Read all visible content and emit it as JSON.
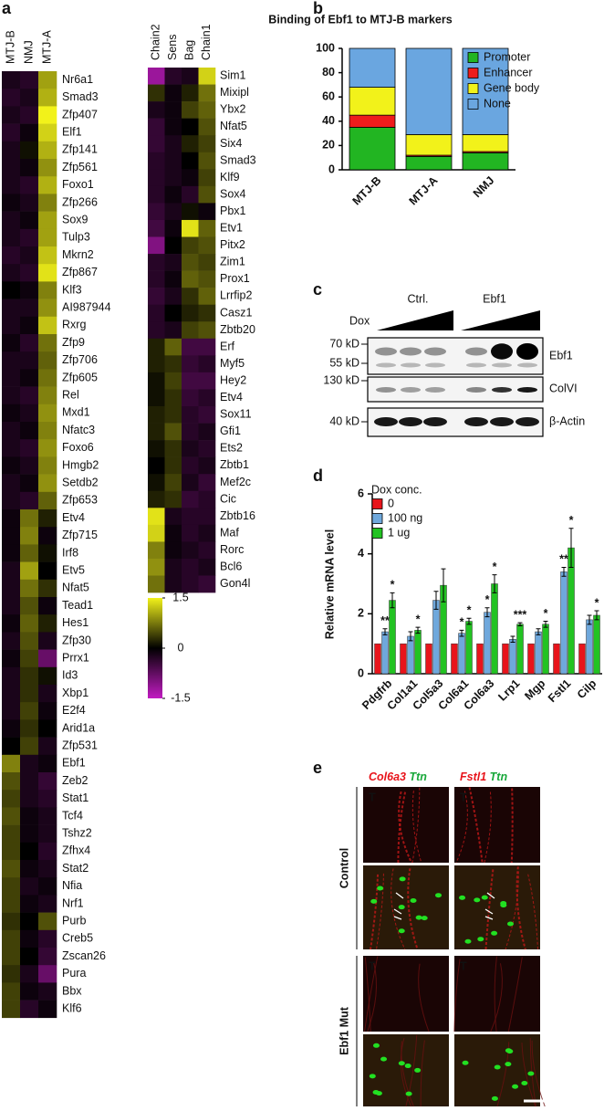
{
  "panel_labels": [
    "a",
    "b",
    "c",
    "d",
    "e"
  ],
  "chart_data": [
    {
      "type": "heatmap",
      "columns": [
        "MTJ-B",
        "NMJ",
        "MTJ-A"
      ],
      "rows": [
        "Nr6a1",
        "Smad3",
        "Zfp407",
        "Elf1",
        "Zfp141",
        "Zfp561",
        "Foxo1",
        "Zfp266",
        "Sox9",
        "Tulp3",
        "Mkrn2",
        "Zfp867",
        "Klf3",
        "AI987944",
        "Rxrg",
        "Zfp9",
        "Zfp706",
        "Zfp605",
        "Rel",
        "Mxd1",
        "Nfatc3",
        "Foxo6",
        "Hmgb2",
        "Setdb2",
        "Zfp653",
        "Etv4",
        "Zfp715",
        "Irf8",
        "Etv5",
        "Nfat5",
        "Tead1",
        "Hes1",
        "Zfp30",
        "Prrx1",
        "Id3",
        "Xbp1",
        "E2f4",
        "Arid1a",
        "Zfp531",
        "Ebf1",
        "Zeb2",
        "Stat1",
        "Tcf4",
        "Tshz2",
        "Zfhx4",
        "Stat2",
        "Nfia",
        "Nrf1",
        "Purb",
        "Creb5",
        "Zscan26",
        "Pura",
        "Bbx",
        "Klf6"
      ],
      "values": [
        [
          -0.2,
          -0.3,
          1.0
        ],
        [
          -0.3,
          -0.2,
          1.1
        ],
        [
          -0.2,
          -0.3,
          1.5
        ],
        [
          -0.3,
          -0.1,
          1.3
        ],
        [
          -0.2,
          0.1,
          1.1
        ],
        [
          -0.2,
          -0.1,
          0.9
        ],
        [
          -0.2,
          -0.3,
          1.1
        ],
        [
          -0.1,
          -0.2,
          0.8
        ],
        [
          -0.2,
          -0.1,
          1.0
        ],
        [
          -0.2,
          -0.3,
          1.0
        ],
        [
          -0.3,
          -0.2,
          1.2
        ],
        [
          -0.2,
          -0.3,
          1.4
        ],
        [
          0.0,
          -0.1,
          0.8
        ],
        [
          -0.2,
          -0.2,
          0.9
        ],
        [
          -0.2,
          -0.1,
          1.2
        ],
        [
          -0.1,
          -0.3,
          0.7
        ],
        [
          -0.2,
          -0.2,
          0.6
        ],
        [
          -0.2,
          -0.1,
          0.7
        ],
        [
          -0.2,
          -0.3,
          0.8
        ],
        [
          -0.1,
          -0.2,
          0.9
        ],
        [
          -0.2,
          -0.1,
          0.8
        ],
        [
          -0.2,
          -0.3,
          0.9
        ],
        [
          -0.1,
          -0.2,
          0.8
        ],
        [
          -0.2,
          -0.1,
          0.9
        ],
        [
          -0.2,
          -0.3,
          0.6
        ],
        [
          -0.1,
          0.7,
          0.2
        ],
        [
          -0.1,
          0.8,
          -0.1
        ],
        [
          -0.1,
          0.6,
          0.1
        ],
        [
          -0.2,
          1.0,
          0.0
        ],
        [
          -0.2,
          0.7,
          0.3
        ],
        [
          -0.2,
          0.5,
          -0.1
        ],
        [
          -0.1,
          0.6,
          0.2
        ],
        [
          -0.2,
          0.5,
          -0.2
        ],
        [
          -0.1,
          0.4,
          -0.8
        ],
        [
          -0.2,
          0.3,
          0.1
        ],
        [
          -0.2,
          0.3,
          -0.2
        ],
        [
          -0.2,
          0.4,
          -0.1
        ],
        [
          -0.1,
          0.3,
          0.0
        ],
        [
          0.0,
          0.4,
          -0.2
        ],
        [
          0.8,
          -0.2,
          -0.1
        ],
        [
          0.5,
          -0.2,
          -0.4
        ],
        [
          0.4,
          -0.2,
          -0.3
        ],
        [
          0.5,
          -0.1,
          -0.2
        ],
        [
          0.4,
          -0.1,
          -0.2
        ],
        [
          0.4,
          0.0,
          -0.3
        ],
        [
          0.5,
          -0.1,
          -0.2
        ],
        [
          0.4,
          -0.2,
          -0.1
        ],
        [
          0.4,
          -0.1,
          -0.2
        ],
        [
          0.3,
          0.0,
          0.5
        ],
        [
          0.4,
          -0.1,
          -0.3
        ],
        [
          0.4,
          0.0,
          -0.4
        ],
        [
          0.3,
          -0.2,
          -0.8
        ],
        [
          0.4,
          -0.1,
          -0.2
        ],
        [
          0.4,
          -0.3,
          -0.1
        ]
      ]
    },
    {
      "type": "heatmap",
      "columns": [
        "Chain2",
        "Sens",
        "Bag",
        "Chain1"
      ],
      "rows": [
        "Sim1",
        "Mixipl",
        "Ybx2",
        "Nfat5",
        "Six4",
        "Smad3",
        "Klf9",
        "Sox4",
        "Pbx1",
        "Etv1",
        "Pitx2",
        "Zim1",
        "Prox1",
        "Lrrfip2",
        "Casz1",
        "Zbtb20",
        "Erf",
        "Myf5",
        "Hey2",
        "Etv4",
        "Sox11",
        "Gfi1",
        "Ets2",
        "Zbtb1",
        "Mef2c",
        "Cic",
        "Zbtb16",
        "Maf",
        "Rorc",
        "Bcl6",
        "Gon4l"
      ],
      "values": [
        [
          -1.2,
          -0.3,
          -0.2,
          1.3
        ],
        [
          0.3,
          -0.1,
          0.2,
          0.7
        ],
        [
          -0.2,
          -0.1,
          0.4,
          0.6
        ],
        [
          -0.4,
          -0.1,
          0.0,
          0.5
        ],
        [
          -0.4,
          -0.2,
          0.2,
          0.4
        ],
        [
          -0.3,
          -0.2,
          0.0,
          0.5
        ],
        [
          -0.3,
          -0.2,
          -0.1,
          0.4
        ],
        [
          -0.3,
          -0.1,
          -0.3,
          0.5
        ],
        [
          -0.4,
          -0.2,
          0.1,
          -0.1
        ],
        [
          -0.5,
          -0.1,
          1.4,
          0.6
        ],
        [
          -1.0,
          0.0,
          0.4,
          0.5
        ],
        [
          -0.3,
          -0.2,
          0.5,
          0.4
        ],
        [
          -0.3,
          -0.1,
          0.6,
          0.5
        ],
        [
          -0.4,
          -0.2,
          0.3,
          0.6
        ],
        [
          -0.3,
          0.0,
          0.2,
          0.3
        ],
        [
          -0.3,
          -0.2,
          0.4,
          0.5
        ],
        [
          0.2,
          0.6,
          -0.5,
          -0.5
        ],
        [
          0.2,
          0.3,
          -0.4,
          -0.3
        ],
        [
          0.1,
          0.4,
          -0.5,
          -0.5
        ],
        [
          0.1,
          0.3,
          -0.4,
          -0.3
        ],
        [
          0.2,
          0.3,
          -0.3,
          -0.4
        ],
        [
          0.2,
          0.5,
          -0.3,
          -0.2
        ],
        [
          0.1,
          0.3,
          -0.2,
          -0.3
        ],
        [
          0.0,
          0.3,
          -0.3,
          -0.2
        ],
        [
          0.1,
          0.4,
          -0.2,
          -0.4
        ],
        [
          0.2,
          0.3,
          -0.4,
          -0.3
        ],
        [
          1.4,
          -0.2,
          -0.3,
          -0.3
        ],
        [
          1.3,
          -0.1,
          -0.3,
          -0.2
        ],
        [
          0.8,
          -0.1,
          -0.2,
          -0.3
        ],
        [
          0.9,
          -0.2,
          -0.3,
          -0.2
        ],
        [
          0.7,
          -0.2,
          -0.3,
          -0.4
        ]
      ],
      "zlim": [
        -1.5,
        1.5
      ],
      "zticks": [
        1.5,
        0,
        -1.5
      ],
      "colors": [
        "#c21bc2",
        "#000000",
        "#f2f21a"
      ]
    },
    {
      "type": "stacked_bar",
      "title": "Binding of Ebf1 to MTJ-B markers",
      "categories": [
        "MTJ-B",
        "MTJ-A",
        "NMJ"
      ],
      "series": [
        {
          "name": "Promoter",
          "color": "#22b522",
          "values": [
            35,
            11,
            14
          ]
        },
        {
          "name": "Enhancer",
          "color": "#ee1c1c",
          "values": [
            10,
            1,
            1
          ]
        },
        {
          "name": "Gene body",
          "color": "#f2f21a",
          "values": [
            23,
            17,
            14
          ]
        },
        {
          "name": "None",
          "color": "#6aa6e0",
          "values": [
            32,
            71,
            71
          ]
        }
      ],
      "ylim": [
        0,
        100
      ],
      "yticks": [
        0,
        20,
        40,
        60,
        80,
        100
      ],
      "legend": "right"
    },
    {
      "type": "grouped_bar",
      "ylabel": "Relative mRNA level",
      "legend_title": "Dox conc.",
      "categories": [
        "Pdgfrb",
        "Col1a1",
        "Col5a3",
        "Col6a1",
        "Col6a3",
        "Lrp1",
        "Mgp",
        "Fstl1",
        "Cilp"
      ],
      "series": [
        {
          "name": "0",
          "color": "#e8141b",
          "values": [
            1,
            1,
            1,
            1,
            1,
            1,
            1,
            1,
            1
          ],
          "errors": [
            0,
            0,
            0,
            0,
            0,
            0,
            0,
            0,
            0
          ],
          "annotations": [
            null,
            null,
            null,
            null,
            null,
            null,
            null,
            null,
            null
          ]
        },
        {
          "name": "100 ng",
          "color": "#6fa8dc",
          "values": [
            1.4,
            1.25,
            2.45,
            1.35,
            2.05,
            1.15,
            1.4,
            3.4,
            1.8
          ],
          "errors": [
            0.1,
            0.15,
            0.3,
            0.1,
            0.15,
            0.1,
            0.1,
            0.15,
            0.15
          ],
          "annotations": [
            "**",
            null,
            null,
            "*",
            "*",
            null,
            null,
            "**",
            null
          ]
        },
        {
          "name": "1 ug",
          "color": "#22c322",
          "values": [
            2.45,
            1.45,
            2.95,
            1.75,
            3.0,
            1.65,
            1.65,
            4.2,
            1.95
          ],
          "errors": [
            0.25,
            0.1,
            0.55,
            0.1,
            0.3,
            0.05,
            0.1,
            0.65,
            0.15
          ],
          "annotations": [
            "*",
            "*",
            null,
            "*",
            "*",
            "***",
            "*",
            "*",
            "*"
          ]
        }
      ],
      "ylim": [
        0,
        6
      ],
      "yticks": [
        0,
        2,
        4,
        6
      ],
      "legend": "upper left"
    }
  ],
  "blot": {
    "groups": [
      "Ctrl.",
      "Ebf1"
    ],
    "treatment": "Dox",
    "size_markers": [
      "70 kD",
      "55 kD",
      "130 kD",
      "40 kD"
    ],
    "bands": [
      "Ebf1",
      "ColVI",
      "β-Actin"
    ]
  },
  "micrographs": {
    "columns": [
      {
        "gene": "Col6a3",
        "marker": "Ttn"
      },
      {
        "gene": "Fstl1",
        "marker": "Ttn"
      }
    ],
    "rows": [
      "Control",
      "Ebf1 Mut"
    ],
    "inset_label": "T"
  }
}
